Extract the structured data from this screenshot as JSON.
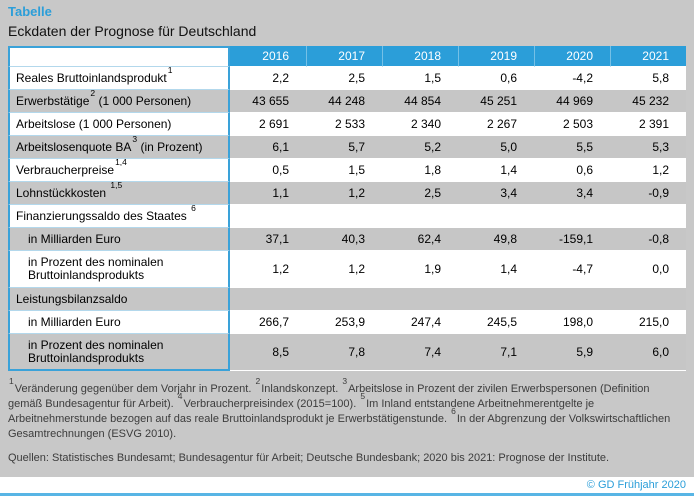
{
  "colors": {
    "accent_blue": "#2b9ed9",
    "border_blue": "#3aa2d9",
    "row_gray": "#c6c6c6",
    "page_gray": "#c8c8c8",
    "footer_rule_blue": "#58b5e5",
    "footnote_text": "#3c3c3c"
  },
  "header": {
    "kicker": "Tabelle",
    "title": "Eckdaten der Prognose für Deutschland"
  },
  "table": {
    "year_headers": [
      "2016",
      "2017",
      "2018",
      "2019",
      "2020",
      "2021"
    ],
    "rows": [
      {
        "label": "Reales Bruttoinlandsprodukt",
        "sup": "1",
        "suffix": "",
        "values": [
          "2,2",
          "2,5",
          "1,5",
          "0,6",
          "-4,2",
          "5,8"
        ]
      },
      {
        "label": "Erwerbstätige",
        "sup": "2",
        "suffix": " (1 000 Personen)",
        "values": [
          "43 655",
          "44 248",
          "44 854",
          "45 251",
          "44 969",
          "45 232"
        ]
      },
      {
        "label": "Arbeitslose (1 000 Personen)",
        "sup": "",
        "suffix": "",
        "values": [
          "2 691",
          "2 533",
          "2 340",
          "2 267",
          "2 503",
          "2 391"
        ]
      },
      {
        "label": "Arbeitslosenquote BA",
        "sup": "3",
        "suffix": " (in Prozent)",
        "values": [
          "6,1",
          "5,7",
          "5,2",
          "5,0",
          "5,5",
          "5,3"
        ]
      },
      {
        "label": "Verbraucherpreise",
        "sup": "1,4",
        "suffix": "",
        "values": [
          "0,5",
          "1,5",
          "1,8",
          "1,4",
          "0,6",
          "1,2"
        ]
      },
      {
        "label": "Lohnstückkosten ",
        "sup": "1,5",
        "suffix": "",
        "values": [
          "1,1",
          "1,2",
          "2,5",
          "3,4",
          "3,4",
          "-0,9"
        ]
      },
      {
        "label": "Finanzierungssaldo des Staates ",
        "sup": "6",
        "suffix": "",
        "values": [
          "",
          "",
          "",
          "",
          "",
          ""
        ]
      },
      {
        "label": "in Milliarden Euro",
        "sup": "",
        "suffix": "",
        "values": [
          "37,1",
          "40,3",
          "62,4",
          "49,8",
          "-159,1",
          "-0,8"
        ]
      },
      {
        "label": "in Prozent des nominalen Bruttoinlandsprodukts",
        "sup": "",
        "suffix": "",
        "values": [
          "1,2",
          "1,2",
          "1,9",
          "1,4",
          "-4,7",
          "0,0"
        ]
      },
      {
        "label": "Leistungsbilanzsaldo",
        "sup": "",
        "suffix": "",
        "values": [
          "",
          "",
          "",
          "",
          "",
          ""
        ]
      },
      {
        "label": "in Milliarden Euro",
        "sup": "",
        "suffix": "",
        "values": [
          "266,7",
          "253,9",
          "247,4",
          "245,5",
          "198,0",
          "215,0"
        ]
      },
      {
        "label": "in Prozent des nominalen Bruttoinlandsprodukts",
        "sup": "",
        "suffix": "",
        "values": [
          "8,5",
          "7,8",
          "7,4",
          "7,1",
          "5,9",
          "6,0"
        ]
      }
    ]
  },
  "footnotes": {
    "segments": [
      {
        "sup": "1",
        "text": "Veränderung gegenüber dem Vorjahr in Prozent."
      },
      {
        "sup": "2",
        "text": "Inlandskonzept."
      },
      {
        "sup": "3",
        "text": "Arbeitslose in Prozent der zivilen Erwerbspersonen (Definition gemäß Bundesagentur für Arbeit)."
      },
      {
        "sup": "4",
        "text": "Verbraucherpreisindex (2015=100)."
      },
      {
        "sup": "5",
        "text": "Im Inland entstandene Arbeitnehmerentgelte je Arbeitnehmerstunde bezogen auf das reale Bruttoinlandsprodukt je Erwerbstätigenstunde."
      },
      {
        "sup": "6",
        "text": "In der Abgrenzung der Volkswirtschaftlichen Gesamtrechnungen (ESVG 2010)."
      }
    ]
  },
  "sources": "Quellen: Statistisches Bundesamt; Bundesagentur für Arbeit; Deutsche Bundesbank; 2020 bis 2021: Prognose der Institute.",
  "footer": {
    "copyright": "© GD Frühjahr 2020"
  },
  "chart_data": {
    "type": "table",
    "title": "Eckdaten der Prognose für Deutschland",
    "categories": [
      "2016",
      "2017",
      "2018",
      "2019",
      "2020",
      "2021"
    ],
    "series": [
      {
        "name": "Reales Bruttoinlandsprodukt (1)",
        "values": [
          2.2,
          2.5,
          1.5,
          0.6,
          -4.2,
          5.8
        ]
      },
      {
        "name": "Erwerbstätige (2) (1 000 Personen)",
        "values": [
          43655,
          44248,
          44854,
          45251,
          44969,
          45232
        ]
      },
      {
        "name": "Arbeitslose (1 000 Personen)",
        "values": [
          2691,
          2533,
          2340,
          2267,
          2503,
          2391
        ]
      },
      {
        "name": "Arbeitslosenquote BA (3) (in Prozent)",
        "values": [
          6.1,
          5.7,
          5.2,
          5.0,
          5.5,
          5.3
        ]
      },
      {
        "name": "Verbraucherpreise (1,4)",
        "values": [
          0.5,
          1.5,
          1.8,
          1.4,
          0.6,
          1.2
        ]
      },
      {
        "name": "Lohnstückkosten (1,5)",
        "values": [
          1.1,
          1.2,
          2.5,
          3.4,
          3.4,
          -0.9
        ]
      },
      {
        "name": "Finanzierungssaldo des Staates (6), in Milliarden Euro",
        "values": [
          37.1,
          40.3,
          62.4,
          49.8,
          -159.1,
          -0.8
        ]
      },
      {
        "name": "Finanzierungssaldo des Staates (6), in Prozent des nominalen Bruttoinlandsprodukts",
        "values": [
          1.2,
          1.2,
          1.9,
          1.4,
          -4.7,
          0.0
        ]
      },
      {
        "name": "Leistungsbilanzsaldo, in Milliarden Euro",
        "values": [
          266.7,
          253.9,
          247.4,
          245.5,
          198.0,
          215.0
        ]
      },
      {
        "name": "Leistungsbilanzsaldo, in Prozent des nominalen Bruttoinlandsprodukts",
        "values": [
          8.5,
          7.8,
          7.4,
          7.1,
          5.9,
          6.0
        ]
      }
    ]
  }
}
